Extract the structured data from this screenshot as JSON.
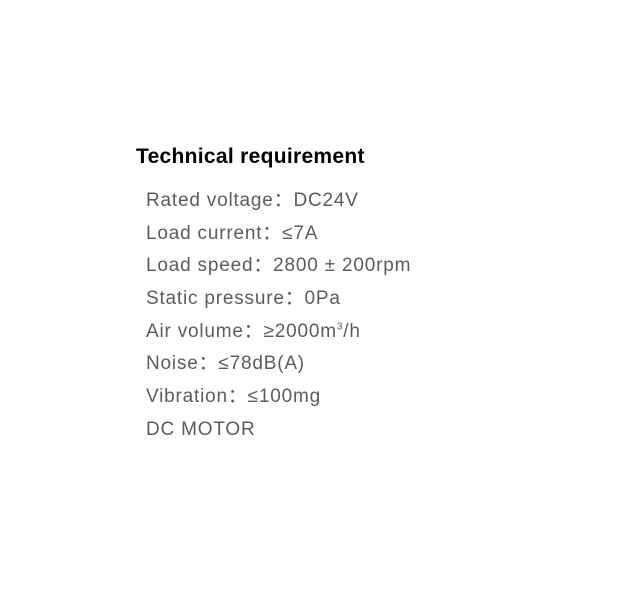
{
  "title": "Technical requirement",
  "specs": [
    {
      "label": "Rated voltage",
      "colon": "：",
      "value": "DC24V"
    },
    {
      "label": "Load current",
      "colon": "：",
      "value": "≤7A"
    },
    {
      "label": "Load speed",
      "colon": "：",
      "value": "2800 ± 200rpm"
    },
    {
      "label": "Static pressure",
      "colon": "：",
      "value": "0Pa"
    },
    {
      "label": "Air volume",
      "colon": "：",
      "value_html": "≥2000m<sup>3</sup>/h"
    },
    {
      "label": "Noise",
      "colon": "：",
      "value": "≤78dB(A)"
    },
    {
      "label": "Vibration",
      "colon": "：",
      "value": "≤100mg"
    },
    {
      "label": "DC MOTOR",
      "colon": "",
      "value": ""
    }
  ],
  "colors": {
    "background": "#ffffff",
    "title_color": "#000000",
    "text_color": "#5c5c5c"
  },
  "typography": {
    "title_fontsize": 21,
    "title_weight": "bold",
    "spec_fontsize": 19,
    "spec_weight": 400,
    "line_height": 1.72,
    "letter_spacing": 0.8
  }
}
